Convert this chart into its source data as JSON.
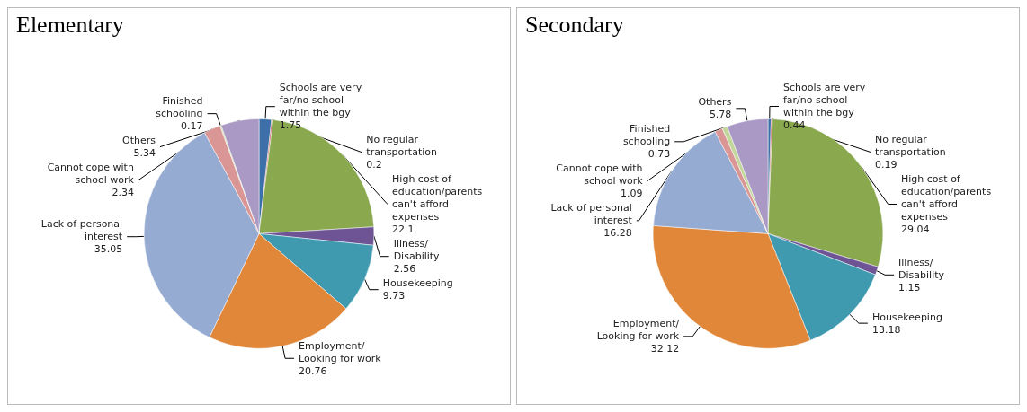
{
  "chart_data": [
    {
      "type": "pie",
      "title": "Elementary",
      "categories": [
        "Schools are very far/no school within the bgy",
        "No regular transportation",
        "High cost of education/parents can't afford expenses",
        "Illness/Disability",
        "Housekeeping",
        "Employment/Looking for work",
        "Lack of personal interest",
        "Cannot cope with school work",
        "Finished schooling",
        "Others"
      ],
      "values": [
        1.75,
        0.2,
        22.1,
        2.56,
        9.73,
        20.76,
        35.05,
        2.34,
        0.17,
        5.34
      ],
      "colors": [
        "#3d6fa8",
        "#c0504d",
        "#8aa84e",
        "#6e5494",
        "#3f9ab0",
        "#e0873a",
        "#95abd2",
        "#d99694",
        "#c3d69b",
        "#a999c4"
      ],
      "data_labels": true,
      "legend": false
    },
    {
      "type": "pie",
      "title": "Secondary",
      "categories": [
        "Schools are very far/no school within the bgy",
        "No regular transportation",
        "High cost of education/parents can't afford expenses",
        "Illness/Disability",
        "Housekeeping",
        "Employment/Looking for work",
        "Lack of personal interest",
        "Cannot cope with school work",
        "Finished schooling",
        "Others"
      ],
      "values": [
        0.44,
        0.19,
        29.04,
        1.15,
        13.18,
        32.12,
        16.28,
        1.09,
        0.73,
        5.78
      ],
      "colors": [
        "#3d6fa8",
        "#c0504d",
        "#8aa84e",
        "#6e5494",
        "#3f9ab0",
        "#e0873a",
        "#95abd2",
        "#d99694",
        "#c3d69b",
        "#a999c4"
      ],
      "data_labels": true,
      "legend": false
    }
  ]
}
